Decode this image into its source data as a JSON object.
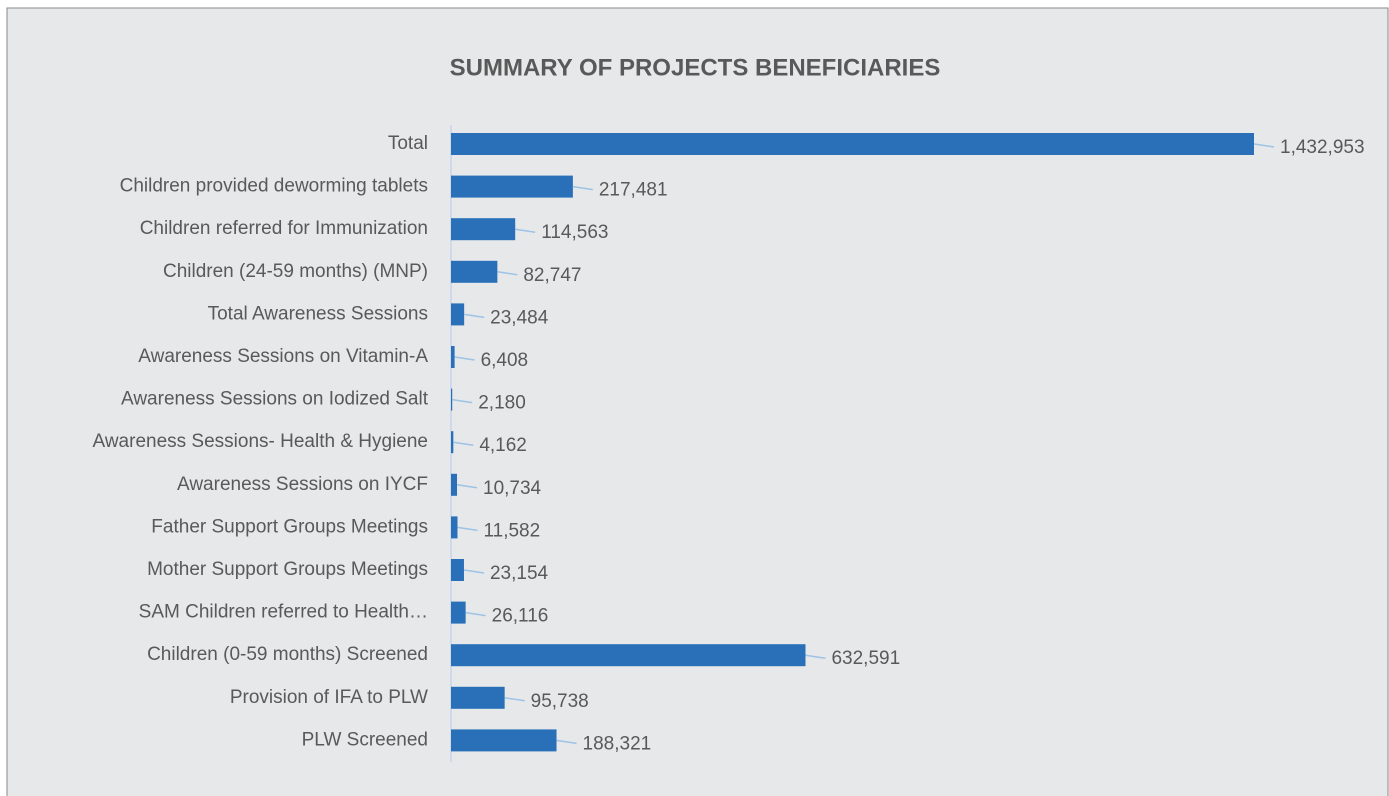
{
  "chart_data": {
    "type": "barh",
    "title": "SUMMARY OF PROJECTS BENEFICIARIES",
    "categories": [
      "Total",
      "Children provided deworming tablets",
      "Children referred for Immunization",
      "Children (24-59 months)  (MNP)",
      "Total Awareness Sessions",
      "Awareness Sessions  on Vitamin-A",
      "Awareness Sessions  on Iodized Salt",
      "Awareness Sessions- Health & Hygiene",
      "Awareness Sessions  on IYCF",
      "Father Support Groups Meetings",
      "Mother Support Groups Meetings",
      "SAM Children referred to Health…",
      "Children (0-59 months) Screened",
      "Provision of IFA to PLW",
      "PLW Screened"
    ],
    "values": [
      1432953,
      217481,
      114563,
      82747,
      23484,
      6408,
      2180,
      4162,
      10734,
      11582,
      23154,
      26116,
      632591,
      95738,
      188321
    ],
    "value_labels": [
      "1,432,953",
      "217,481",
      "114,563",
      "82,747",
      "23,484",
      "6,408",
      "2,180",
      "4,162",
      "10,734",
      "11,582",
      "23,154",
      "26,116",
      "632,591",
      "95,738",
      "188,321"
    ],
    "color": "#2970b8"
  }
}
